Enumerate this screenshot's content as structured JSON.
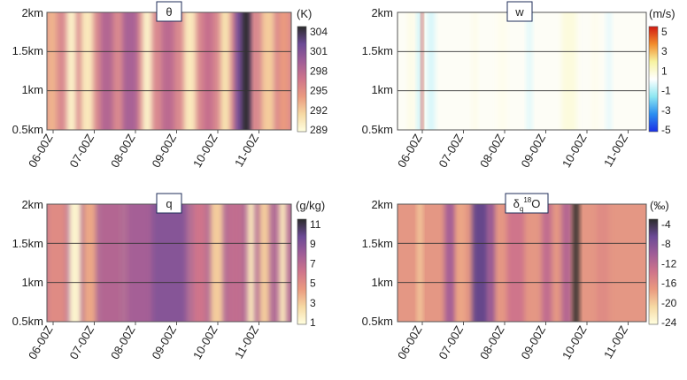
{
  "chart_data": [
    {
      "type": "heatmap",
      "title": "θ",
      "unit": "(K)",
      "y_ticks": [
        "2km",
        "1.5km",
        "1km",
        "0.5km"
      ],
      "y_values": [
        2,
        1.5,
        1,
        0.5
      ],
      "x_ticks": [
        "06-00Z",
        "07-00Z",
        "08-00Z",
        "09-00Z",
        "10-00Z",
        "11-00Z"
      ],
      "colorbar_ticks": [
        "304",
        "301",
        "298",
        "295",
        "292",
        "289"
      ],
      "colorbar_range": [
        289,
        304
      ],
      "colormap": [
        "#ffffe0",
        "#f6d9a3",
        "#ea9a7f",
        "#cf748b",
        "#a05d97",
        "#6c4a96",
        "#2b2b2b"
      ],
      "background": "#d98a8f",
      "columns": [
        {
          "x": 0.0,
          "w": 0.04,
          "v": 293
        },
        {
          "x": 0.08,
          "w": 0.04,
          "v": 290
        },
        {
          "x": 0.14,
          "w": 0.05,
          "v": 290.5
        },
        {
          "x": 0.22,
          "w": 0.05,
          "v": 298
        },
        {
          "x": 0.31,
          "w": 0.06,
          "v": 298.5
        },
        {
          "x": 0.39,
          "w": 0.04,
          "v": 290
        },
        {
          "x": 0.47,
          "w": 0.05,
          "v": 297.5
        },
        {
          "x": 0.56,
          "w": 0.05,
          "v": 290.5
        },
        {
          "x": 0.64,
          "w": 0.04,
          "v": 297
        },
        {
          "x": 0.71,
          "w": 0.04,
          "v": 291
        },
        {
          "x": 0.77,
          "w": 0.06,
          "v": 301
        },
        {
          "x": 0.8,
          "w": 0.03,
          "v": 304
        },
        {
          "x": 0.88,
          "w": 0.05,
          "v": 292
        },
        {
          "x": 0.95,
          "w": 0.04,
          "v": 294
        }
      ]
    },
    {
      "type": "heatmap",
      "title": "w",
      "unit": "(m/s)",
      "y_ticks": [
        "2km",
        "1.5km",
        "1km",
        "0.5km"
      ],
      "y_values": [
        2,
        1.5,
        1,
        0.5
      ],
      "x_ticks": [
        "06-00Z",
        "07-00Z",
        "08-00Z",
        "09-00Z",
        "10-00Z",
        "11-00Z"
      ],
      "colorbar_ticks": [
        "5",
        "3",
        "1",
        "-1",
        "-3",
        "-5"
      ],
      "colorbar_range": [
        -5,
        5
      ],
      "colormap": [
        "#1a2fe6",
        "#2b8ef0",
        "#8de7f2",
        "#ffffff",
        "#f7f3a0",
        "#f28c2c",
        "#d11a12"
      ],
      "background": "#fdfdf6",
      "columns": [
        {
          "x": 0.04,
          "w": 0.03,
          "v": 0.4
        },
        {
          "x": 0.08,
          "w": 0.02,
          "v": -0.8
        },
        {
          "x": 0.095,
          "w": 0.008,
          "v": 5
        },
        {
          "x": 0.12,
          "w": 0.03,
          "v": -0.6
        },
        {
          "x": 0.3,
          "w": 0.02,
          "v": 0.4
        },
        {
          "x": 0.4,
          "w": 0.04,
          "v": 0.3
        },
        {
          "x": 0.52,
          "w": 0.02,
          "v": -0.5
        },
        {
          "x": 0.66,
          "w": 0.06,
          "v": 0.6
        },
        {
          "x": 0.78,
          "w": 0.03,
          "v": 0.3
        },
        {
          "x": 0.84,
          "w": 0.02,
          "v": -0.4
        }
      ]
    },
    {
      "type": "heatmap",
      "title": "q",
      "unit": "(g/kg)",
      "y_ticks": [
        "2km",
        "1.5km",
        "1km",
        "0.5km"
      ],
      "y_values": [
        2,
        1.5,
        1,
        0.5
      ],
      "x_ticks": [
        "06-00Z",
        "07-00Z",
        "08-00Z",
        "09-00Z",
        "10-00Z",
        "11-00Z"
      ],
      "colorbar_ticks": [
        "11",
        "9",
        "7",
        "5",
        "3",
        "1"
      ],
      "colorbar_range": [
        1,
        11
      ],
      "colormap": [
        "#ffffe0",
        "#f6d9a3",
        "#ea9a7f",
        "#cf748b",
        "#a05d97",
        "#6c4a96",
        "#2b2b2b"
      ],
      "background": "#b36f96",
      "columns": [
        {
          "x": 0.0,
          "w": 0.08,
          "v": 5
        },
        {
          "x": 0.09,
          "w": 0.05,
          "v": 1.5
        },
        {
          "x": 0.15,
          "w": 0.05,
          "v": 4
        },
        {
          "x": 0.22,
          "w": 0.08,
          "v": 7
        },
        {
          "x": 0.33,
          "w": 0.12,
          "v": 7.5
        },
        {
          "x": 0.43,
          "w": 0.14,
          "v": 8.5
        },
        {
          "x": 0.6,
          "w": 0.05,
          "v": 6
        },
        {
          "x": 0.67,
          "w": 0.05,
          "v": 3
        },
        {
          "x": 0.74,
          "w": 0.06,
          "v": 6.5
        },
        {
          "x": 0.82,
          "w": 0.03,
          "v": 2
        },
        {
          "x": 0.87,
          "w": 0.04,
          "v": 3
        },
        {
          "x": 0.95,
          "w": 0.03,
          "v": 2
        }
      ]
    },
    {
      "type": "heatmap",
      "title": "δq18O",
      "title_main": "δ",
      "title_sub": "q",
      "title_sup": "18",
      "title_tail": "O",
      "unit": "(‰)",
      "y_ticks": [
        "2km",
        "1.5km",
        "1km",
        "0.5km"
      ],
      "y_values": [
        2,
        1.5,
        1,
        0.5
      ],
      "x_ticks": [
        "06-00Z",
        "07-00Z",
        "08-00Z",
        "09-00Z",
        "10-00Z",
        "11-00Z"
      ],
      "colorbar_ticks": [
        "-4",
        "-8",
        "-12",
        "-16",
        "-20",
        "-24"
      ],
      "colorbar_range": [
        -24,
        -4
      ],
      "colormap": [
        "#ffffe0",
        "#f6d9a3",
        "#ea9a7f",
        "#cf748b",
        "#a05d97",
        "#6c4a96",
        "#2b2b2b"
      ],
      "background": "#e49784",
      "columns": [
        {
          "x": 0.08,
          "w": 0.02,
          "v": -20
        },
        {
          "x": 0.19,
          "w": 0.04,
          "v": -11
        },
        {
          "x": 0.24,
          "w": 0.03,
          "v": -18
        },
        {
          "x": 0.3,
          "w": 0.07,
          "v": -7
        },
        {
          "x": 0.36,
          "w": 0.03,
          "v": -10
        },
        {
          "x": 0.44,
          "w": 0.07,
          "v": -14
        },
        {
          "x": 0.58,
          "w": 0.04,
          "v": -13
        },
        {
          "x": 0.66,
          "w": 0.04,
          "v": -12
        },
        {
          "x": 0.705,
          "w": 0.025,
          "v": -4
        },
        {
          "x": 0.8,
          "w": 0.05,
          "v": -16
        }
      ]
    }
  ]
}
